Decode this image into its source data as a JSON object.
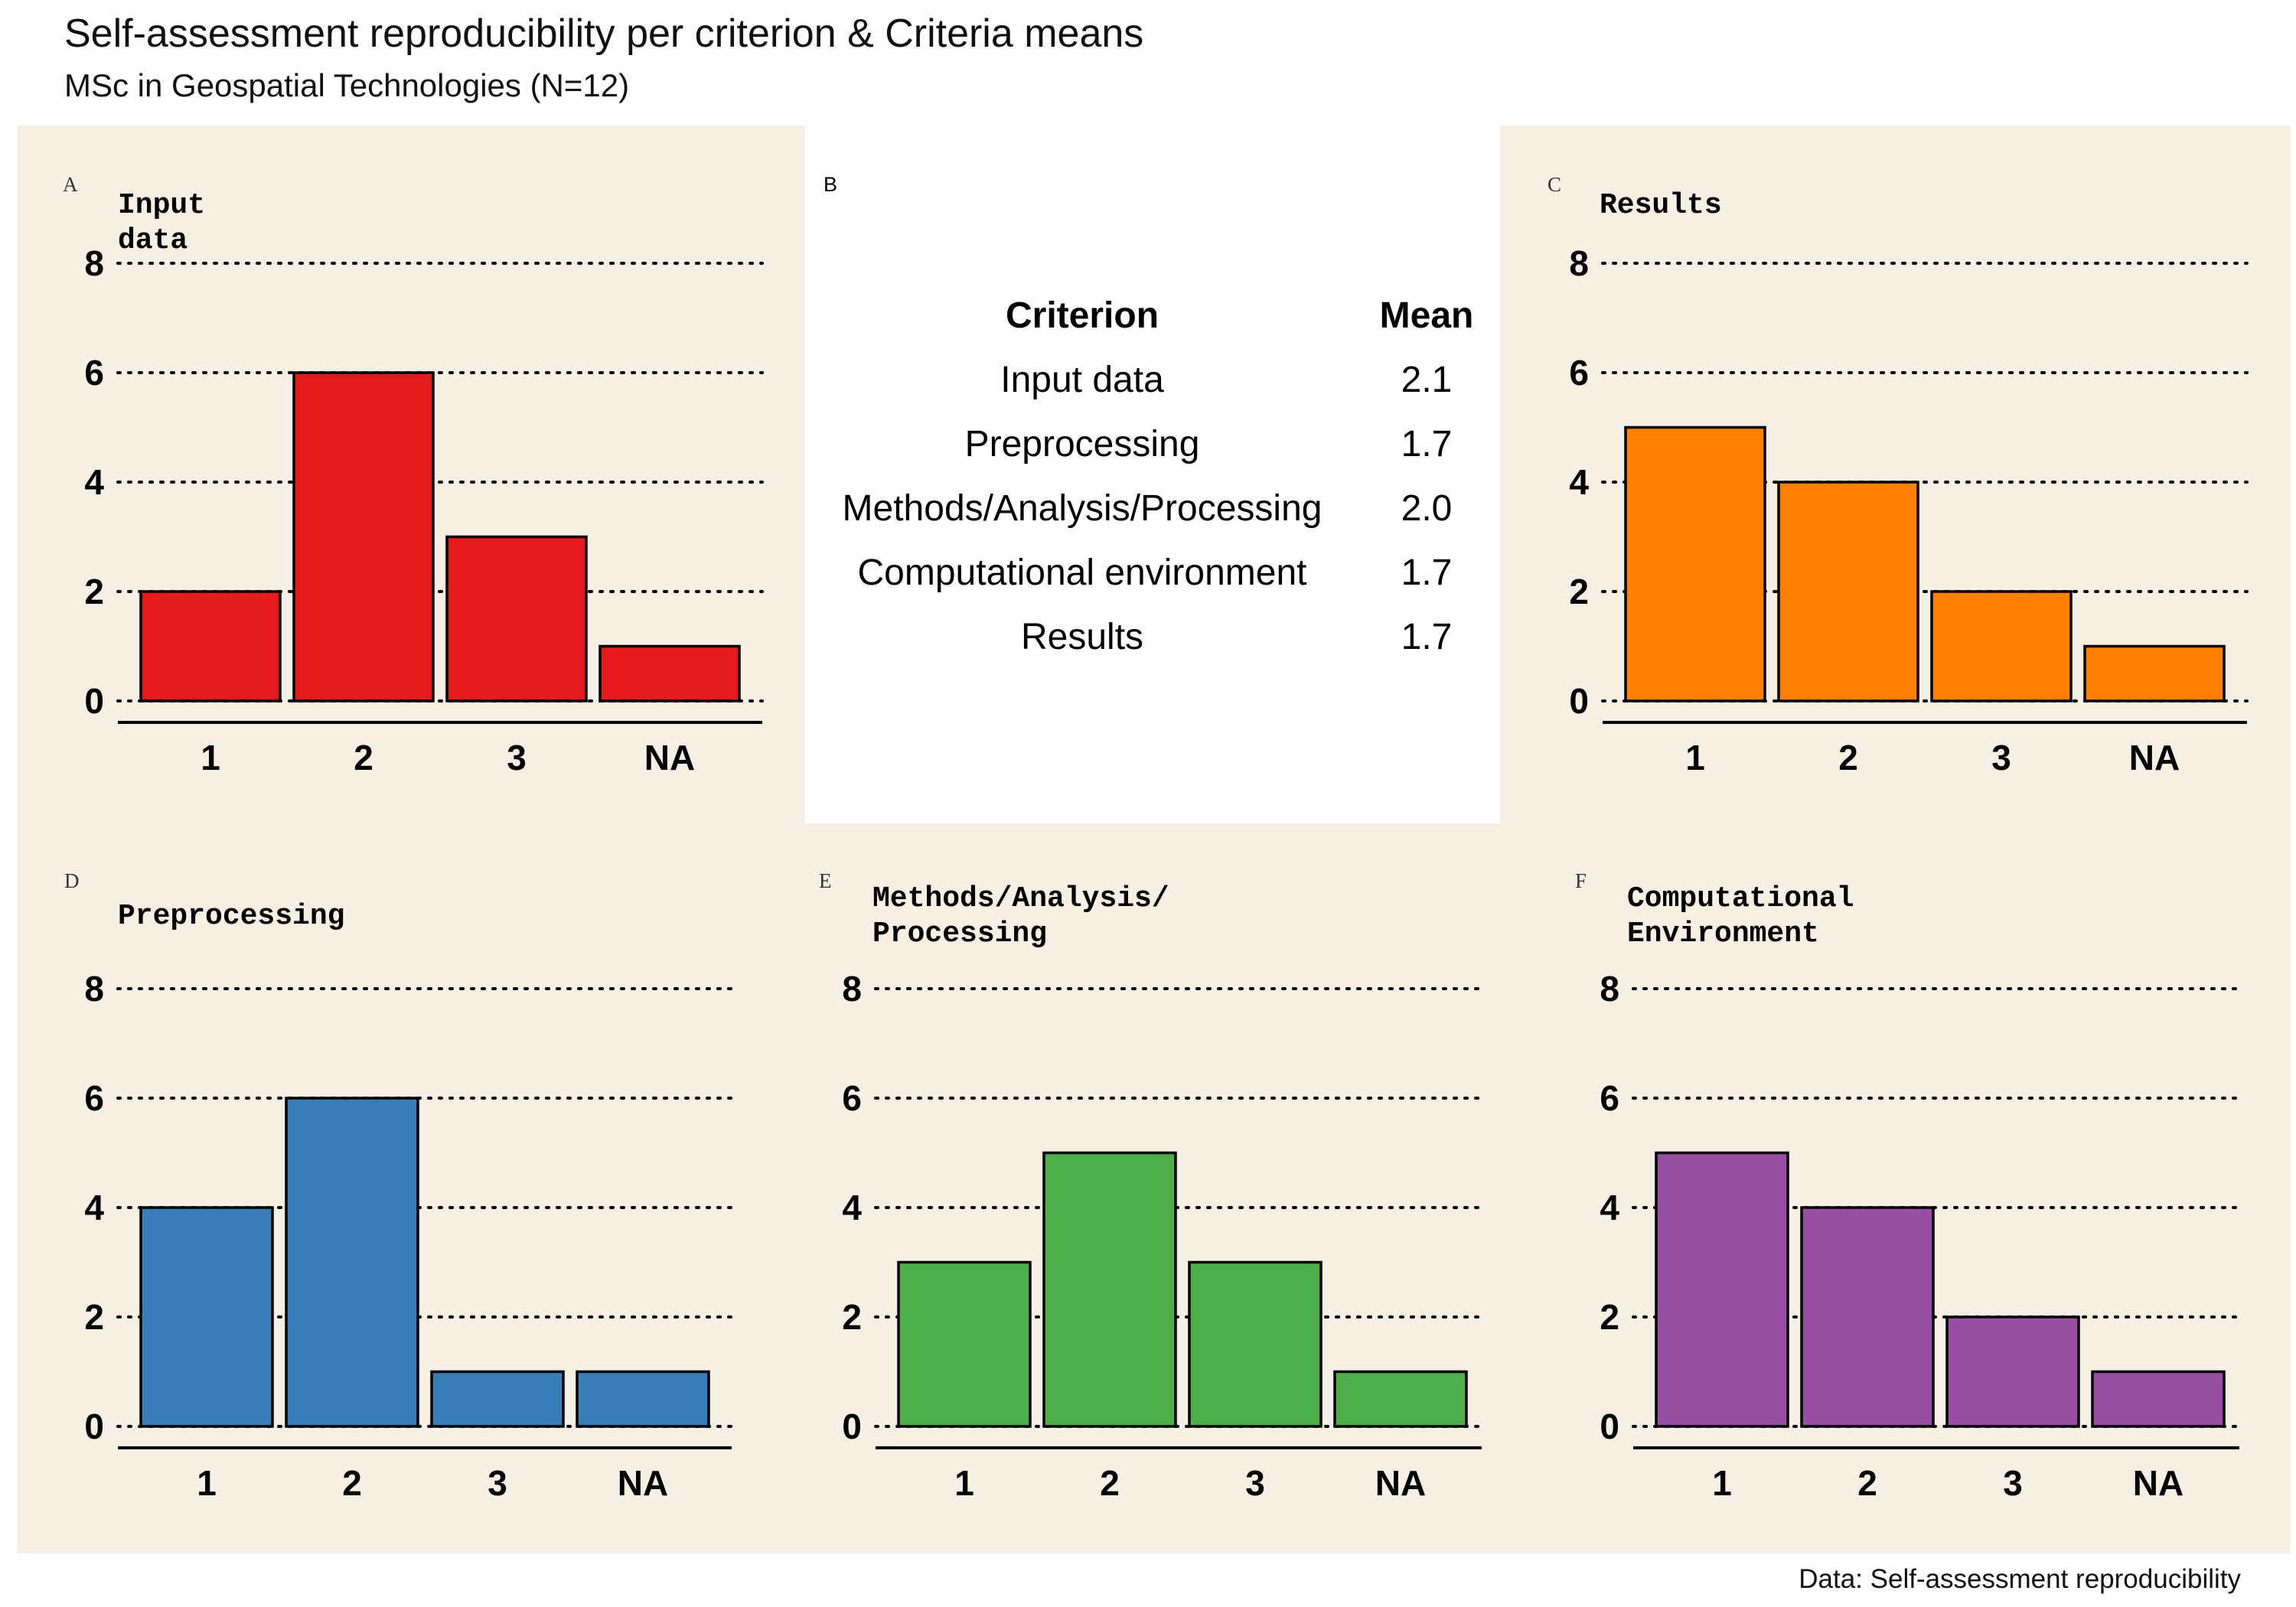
{
  "title": "Self-assessment reproducibility per criterion & Criteria means",
  "subtitle": "MSc in Geospatial Technologies (N=12)",
  "caption": "Data: Self-assessment reproducibility",
  "table": {
    "tag": "B",
    "headers": [
      "Criterion",
      "Mean"
    ],
    "rows": [
      {
        "criterion": "Input data",
        "mean": "2.1"
      },
      {
        "criterion": "Preprocessing",
        "mean": "1.7"
      },
      {
        "criterion": "Methods/Analysis/Processing",
        "mean": "2.0"
      },
      {
        "criterion": "Computational environment",
        "mean": "1.7"
      },
      {
        "criterion": "Results",
        "mean": "1.7"
      }
    ]
  },
  "chart_data": [
    {
      "type": "bar",
      "tag": "A",
      "title": "Input data",
      "categories": [
        "1",
        "2",
        "3",
        "NA"
      ],
      "values": [
        2,
        6,
        3,
        1
      ],
      "ylim": [
        0,
        8
      ],
      "yticks": [
        "0",
        "2",
        "4",
        "6",
        "8"
      ],
      "color": "#E41A1C",
      "grid": "dotted-horizontal"
    },
    {
      "type": "bar",
      "tag": "C",
      "title": "Results",
      "categories": [
        "1",
        "2",
        "3",
        "NA"
      ],
      "values": [
        5,
        4,
        2,
        1
      ],
      "ylim": [
        0,
        8
      ],
      "yticks": [
        "0",
        "2",
        "4",
        "6",
        "8"
      ],
      "color": "#FF7F00",
      "grid": "dotted-horizontal"
    },
    {
      "type": "bar",
      "tag": "D",
      "title": "Preprocessing",
      "categories": [
        "1",
        "2",
        "3",
        "NA"
      ],
      "values": [
        4,
        6,
        1,
        1
      ],
      "ylim": [
        0,
        8
      ],
      "yticks": [
        "0",
        "2",
        "4",
        "6",
        "8"
      ],
      "color": "#377EB8",
      "grid": "dotted-horizontal"
    },
    {
      "type": "bar",
      "tag": "E",
      "title": "Methods/Analysis/\nProcessing",
      "categories": [
        "1",
        "2",
        "3",
        "NA"
      ],
      "values": [
        3,
        5,
        3,
        1
      ],
      "ylim": [
        0,
        8
      ],
      "yticks": [
        "0",
        "2",
        "4",
        "6",
        "8"
      ],
      "color": "#4DAF4A",
      "grid": "dotted-horizontal"
    },
    {
      "type": "bar",
      "tag": "F",
      "title": "Computational\nEnvironment",
      "categories": [
        "1",
        "2",
        "3",
        "NA"
      ],
      "values": [
        5,
        4,
        2,
        1
      ],
      "ylim": [
        0,
        8
      ],
      "yticks": [
        "0",
        "2",
        "4",
        "6",
        "8"
      ],
      "color": "#984EA3",
      "grid": "dotted-horizontal"
    }
  ]
}
